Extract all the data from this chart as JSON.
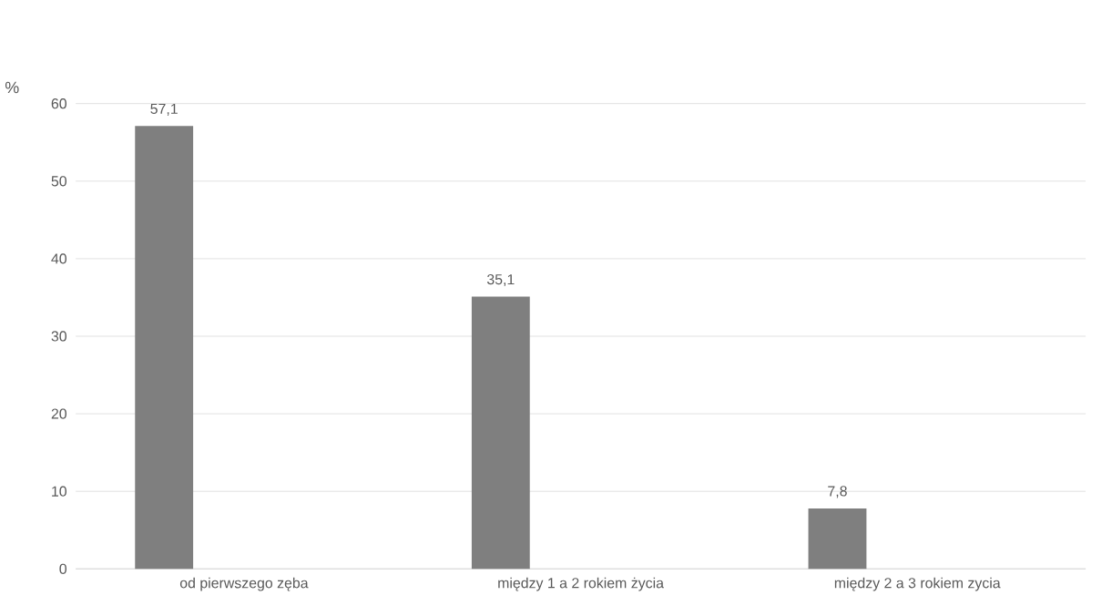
{
  "chart_data": {
    "type": "bar",
    "ylabel": "%",
    "categories": [
      "od pierwszego zęba",
      "między 1 a 2 rokiem życia",
      "między 2 a 3 rokiem zycia"
    ],
    "values": [
      57.1,
      35.1,
      7.8
    ],
    "value_labels": [
      "57,1",
      "35,1",
      "7,8"
    ],
    "color": "#7f7f7f",
    "ylim": [
      0,
      60
    ],
    "yticks": [
      0,
      10,
      20,
      30,
      40,
      50,
      60
    ],
    "grid": "y"
  }
}
